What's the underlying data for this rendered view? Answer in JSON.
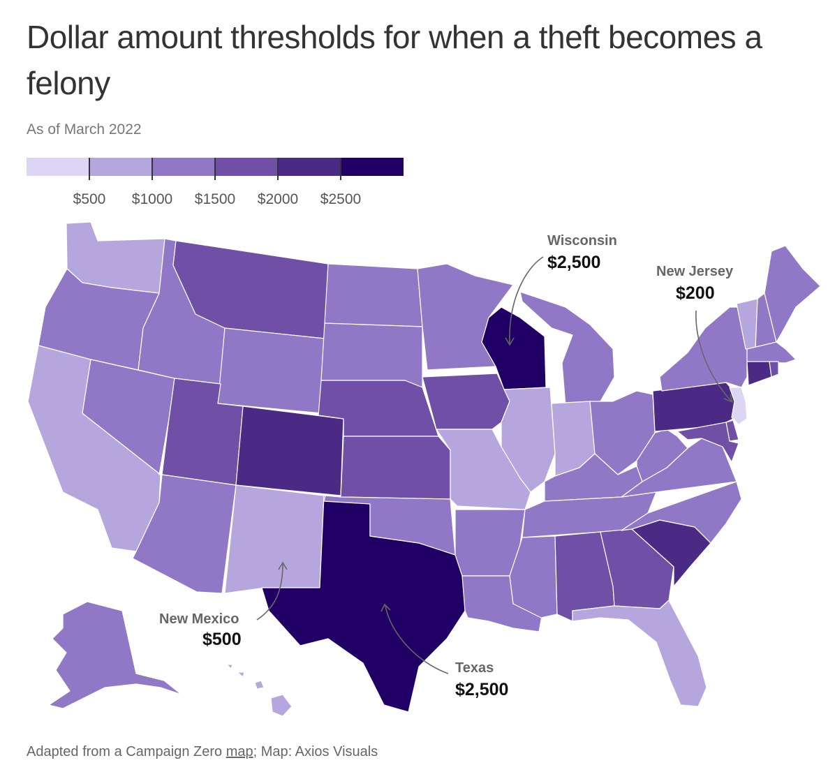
{
  "title": "Dollar amount thresholds for when a theft becomes a felony",
  "subtitle": "As of March 2022",
  "legend": {
    "colors": [
      "#dcd5f4",
      "#b6a6de",
      "#9178c6",
      "#6f50a6",
      "#4b2a86",
      "#210066"
    ],
    "labels": [
      "$500",
      "$1000",
      "$1500",
      "$2000",
      "$2500"
    ]
  },
  "map": {
    "states": [
      {
        "name": "Washington",
        "class": 1
      },
      {
        "name": "Oregon",
        "class": 2
      },
      {
        "name": "California",
        "class": 1
      },
      {
        "name": "Nevada",
        "class": 2
      },
      {
        "name": "Idaho",
        "class": 2
      },
      {
        "name": "Montana",
        "class": 3
      },
      {
        "name": "Wyoming",
        "class": 2
      },
      {
        "name": "Utah",
        "class": 3
      },
      {
        "name": "Colorado",
        "class": 4
      },
      {
        "name": "Arizona",
        "class": 2
      },
      {
        "name": "New Mexico",
        "class": 1
      },
      {
        "name": "Texas",
        "class": 5
      },
      {
        "name": "North Dakota",
        "class": 2
      },
      {
        "name": "South Dakota",
        "class": 2
      },
      {
        "name": "Nebraska",
        "class": 3
      },
      {
        "name": "Kansas",
        "class": 3
      },
      {
        "name": "Oklahoma",
        "class": 2
      },
      {
        "name": "Minnesota",
        "class": 2
      },
      {
        "name": "Iowa",
        "class": 3
      },
      {
        "name": "Missouri",
        "class": 1
      },
      {
        "name": "Arkansas",
        "class": 2
      },
      {
        "name": "Louisiana",
        "class": 2
      },
      {
        "name": "Wisconsin",
        "class": 5
      },
      {
        "name": "Illinois",
        "class": 1
      },
      {
        "name": "Michigan",
        "class": 2
      },
      {
        "name": "Indiana",
        "class": 1
      },
      {
        "name": "Ohio",
        "class": 2
      },
      {
        "name": "Kentucky",
        "class": 2
      },
      {
        "name": "Tennessee",
        "class": 2
      },
      {
        "name": "Mississippi",
        "class": 2
      },
      {
        "name": "Alabama",
        "class": 3
      },
      {
        "name": "Georgia",
        "class": 3
      },
      {
        "name": "Florida",
        "class": 1
      },
      {
        "name": "South Carolina",
        "class": 4
      },
      {
        "name": "North Carolina",
        "class": 2
      },
      {
        "name": "Virginia",
        "class": 2
      },
      {
        "name": "West Virginia",
        "class": 2
      },
      {
        "name": "Pennsylvania",
        "class": 4
      },
      {
        "name": "New York",
        "class": 2
      },
      {
        "name": "Vermont",
        "class": 1
      },
      {
        "name": "New Hampshire",
        "class": 2
      },
      {
        "name": "Maine",
        "class": 2
      },
      {
        "name": "Massachusetts",
        "class": 2
      },
      {
        "name": "Connecticut",
        "class": 4
      },
      {
        "name": "Rhode Island",
        "class": 3
      },
      {
        "name": "New Jersey",
        "class": 0
      },
      {
        "name": "Delaware",
        "class": 3
      },
      {
        "name": "Maryland",
        "class": 3
      },
      {
        "name": "Alaska",
        "class": 2
      },
      {
        "name": "Hawaii",
        "class": 1
      }
    ]
  },
  "annotations": [
    {
      "state": "Wisconsin",
      "value": "$2,500"
    },
    {
      "state": "New Jersey",
      "value": "$200"
    },
    {
      "state": "New Mexico",
      "value": "$500"
    },
    {
      "state": "Texas",
      "value": "$2,500"
    }
  ],
  "source": {
    "prefix": "Adapted from a Campaign Zero ",
    "link": "map",
    "suffix": "; Map: Axios Visuals"
  }
}
